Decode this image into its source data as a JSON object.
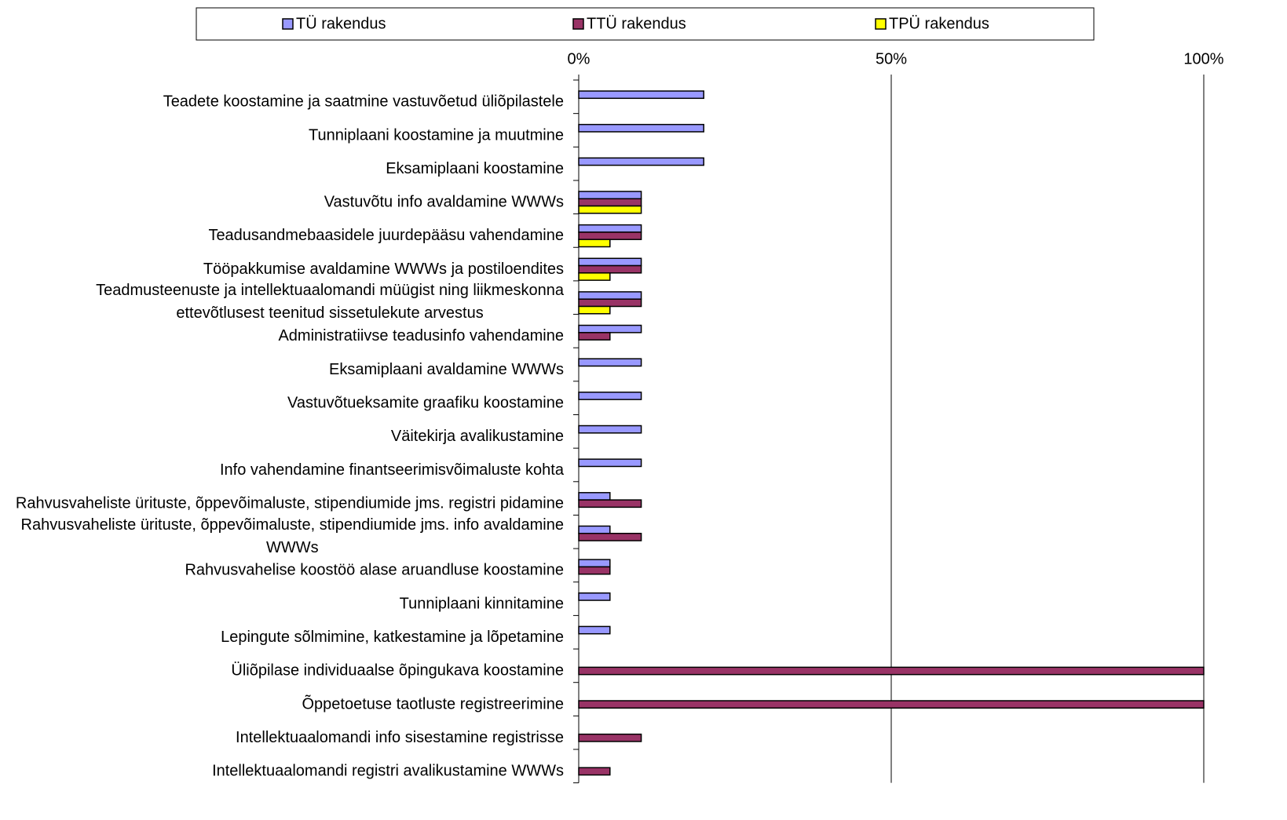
{
  "chart_data": {
    "type": "bar",
    "orientation": "horizontal",
    "categories": [
      "Teadete koostamine ja saatmine vastuvõetud üliõpilastele",
      "Tunniplaani koostamine ja muutmine",
      "Eksamiplaani koostamine",
      "Vastuvõtu info avaldamine WWWs",
      "Teadusandmebaasidele juurdepääsu vahendamine",
      "Tööpakkumise avaldamine WWWs ja postiloendites",
      "Teadmusteenuste ja intellektuaalomandi müügist ning liikmeskonna ettevõtlusest teenitud sissetulekute arvestus",
      "Administratiivse teadusinfo vahendamine",
      "Eksamiplaani avaldamine WWWs",
      "Vastuvõtueksamite graafiku koostamine",
      "Väitekirja avalikustamine",
      "Info vahendamine finantseerimisvõimaluste kohta",
      "Rahvusvaheliste ürituste, õppevõimaluste, stipendiumide jms. registri pidamine",
      "Rahvusvaheliste ürituste, õppevõimaluste, stipendiumide jms. info avaldamine WWWs",
      "Rahvusvahelise koostöö alase aruandluse koostamine",
      "Tunniplaani kinnitamine",
      "Lepingute sõlmimine, katkestamine ja lõpetamine",
      "Üliõpilase individuaalse õpingukava koostamine",
      "Õppetoetuse taotluste registreerimine",
      "Intellektuaalomandi info sisestamine registrisse",
      "Intellektuaalomandi registri avalikustamine WWWs"
    ],
    "series": [
      {
        "name": "TÜ rakendus",
        "color": "#9999ff",
        "values": [
          20,
          20,
          20,
          10,
          10,
          10,
          10,
          10,
          10,
          10,
          10,
          10,
          5,
          5,
          5,
          5,
          5,
          null,
          null,
          null,
          null
        ]
      },
      {
        "name": "TTÜ rakendus",
        "color": "#993366",
        "values": [
          null,
          null,
          null,
          10,
          10,
          10,
          10,
          5,
          null,
          null,
          null,
          null,
          10,
          10,
          5,
          null,
          null,
          100,
          100,
          10,
          5
        ]
      },
      {
        "name": "TPÜ rakendus",
        "color": "#ffff00",
        "values": [
          null,
          null,
          null,
          10,
          5,
          5,
          5,
          null,
          null,
          null,
          null,
          null,
          null,
          null,
          null,
          null,
          null,
          null,
          null,
          null,
          null
        ]
      }
    ],
    "xlim": [
      0,
      100
    ],
    "xticks": [
      {
        "value": 0,
        "label": "0%"
      },
      {
        "value": 50,
        "label": "50%"
      },
      {
        "value": 100,
        "label": "100%"
      }
    ],
    "grid": true,
    "legend": "top"
  }
}
